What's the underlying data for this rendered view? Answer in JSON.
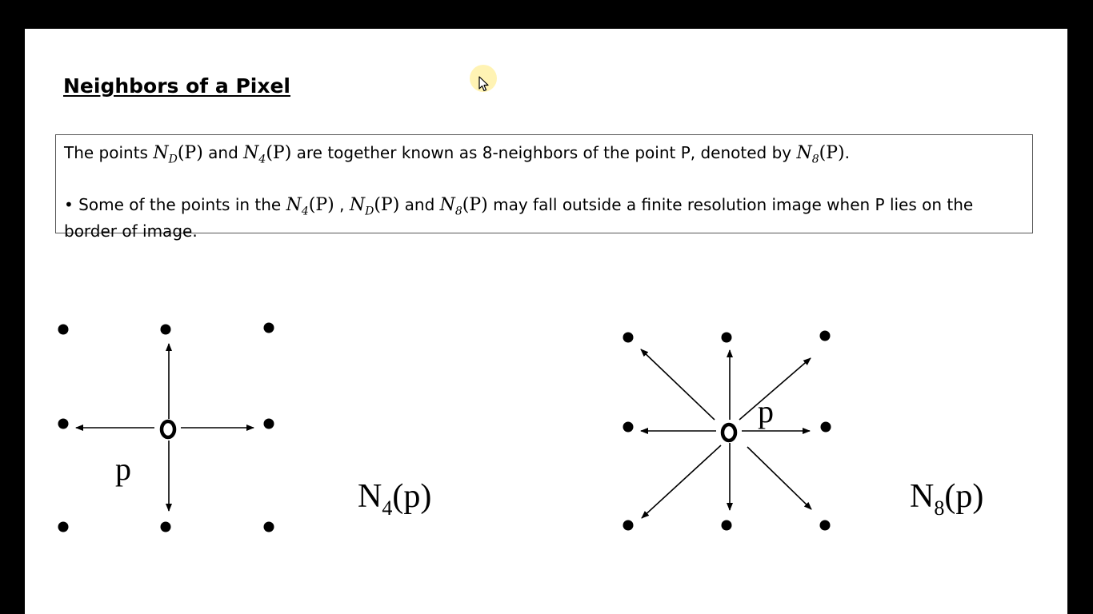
{
  "slide": {
    "title": "Neighbors of a Pixel",
    "definition": {
      "prefix": "The points ",
      "nd": "N",
      "nd_sub": "D",
      "arg": "(P)",
      "middle": " and ",
      "n4": "N",
      "n4_sub": "4",
      "after": " are together known as 8-neighbors of the point P, denoted by ",
      "n8": "N",
      "n8_sub": "8",
      "suffix": "."
    },
    "bullet": {
      "prefix": "• Some of the points in the ",
      "sep1": " , ",
      "sep2": " and ",
      "suffix": " may fall outside a finite resolution image when P lies on the border of image."
    }
  },
  "diagram_left": {
    "center_label": "p",
    "caption_main": "N",
    "caption_sub": "4",
    "caption_arg": "(p)"
  },
  "diagram_right": {
    "center_label": "p",
    "caption_main": "N",
    "caption_sub": "8",
    "caption_arg": "(p)"
  },
  "player_controls": {
    "icons": [
      "previous-icon",
      "next-icon",
      "pen-icon",
      "slides-icon",
      "zoom-icon",
      "more-icon"
    ],
    "glyphs": [
      "◁",
      "▷",
      "✎",
      "▤",
      "⌕",
      "⋯"
    ]
  },
  "colors": {
    "background": "#000000",
    "slide": "#ffffff",
    "ink": "#000000",
    "cursor_highlight": "#ffec8c"
  }
}
